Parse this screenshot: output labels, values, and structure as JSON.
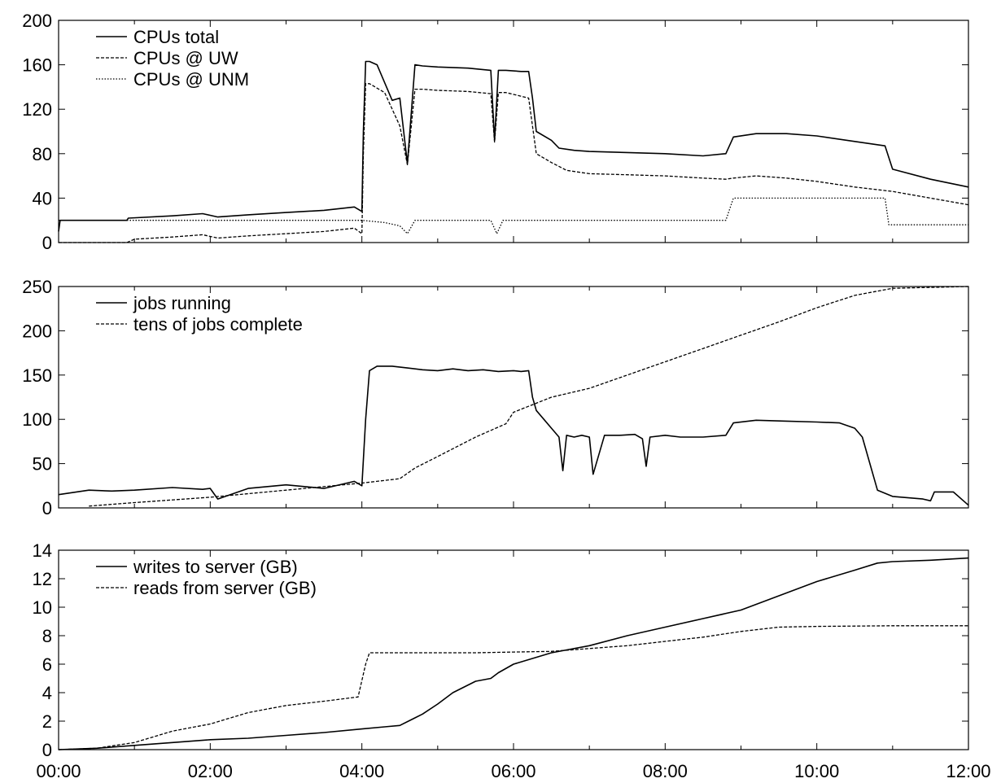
{
  "chart_data": [
    {
      "type": "line",
      "title": "",
      "xlabel": "",
      "ylabel": "",
      "xlim": [
        0,
        12
      ],
      "ylim": [
        0,
        200
      ],
      "yticks": [
        "0",
        "40",
        "80",
        "120",
        "160",
        "200"
      ],
      "ytick_values": [
        0,
        40,
        80,
        120,
        160,
        200
      ],
      "grid": false,
      "legend_position": "top-left",
      "series": [
        {
          "name": "CPUs total",
          "style": "solid",
          "x": [
            0.0,
            0.02,
            0.9,
            0.92,
            1.5,
            1.9,
            2.1,
            2.5,
            3.0,
            3.5,
            3.9,
            4.0,
            4.02,
            4.05,
            4.1,
            4.2,
            4.4,
            4.5,
            4.6,
            4.7,
            4.8,
            5.0,
            5.4,
            5.7,
            5.75,
            5.8,
            5.9,
            6.1,
            6.2,
            6.25,
            6.3,
            6.5,
            6.6,
            6.8,
            7.0,
            7.5,
            8.0,
            8.5,
            8.8,
            8.9,
            9.2,
            9.6,
            10.0,
            10.5,
            10.9,
            11.0,
            11.5,
            12.0
          ],
          "y": [
            10,
            20,
            20,
            22,
            24,
            26,
            23,
            25,
            27,
            29,
            32,
            28,
            100,
            163,
            163,
            160,
            128,
            130,
            71,
            160,
            159,
            158,
            157,
            155,
            92,
            155,
            155,
            154,
            154,
            130,
            100,
            92,
            85,
            83,
            82,
            81,
            80,
            78,
            80,
            95,
            98,
            98,
            96,
            91,
            87,
            66,
            57,
            50
          ]
        },
        {
          "name": "CPUs @ UW",
          "style": "dashed",
          "x": [
            0.0,
            0.9,
            1.0,
            1.5,
            1.9,
            2.1,
            2.5,
            3.0,
            3.5,
            3.9,
            4.0,
            4.02,
            4.05,
            4.1,
            4.3,
            4.5,
            4.6,
            4.7,
            4.8,
            5.0,
            5.4,
            5.7,
            5.75,
            5.8,
            5.9,
            6.2,
            6.25,
            6.3,
            6.5,
            6.7,
            7.0,
            7.5,
            8.0,
            8.5,
            8.8,
            8.9,
            9.2,
            9.6,
            10.0,
            10.5,
            11.0,
            11.5,
            12.0
          ],
          "y": [
            0,
            0,
            3,
            5,
            7,
            4,
            6,
            8,
            10,
            13,
            8,
            80,
            143,
            143,
            135,
            105,
            70,
            138,
            138,
            137,
            136,
            134,
            90,
            135,
            135,
            130,
            105,
            80,
            72,
            65,
            62,
            61,
            60,
            58,
            57,
            58,
            60,
            58,
            55,
            50,
            46,
            40,
            34
          ]
        },
        {
          "name": "CPUs @ UNM",
          "style": "dotted",
          "x": [
            0.0,
            4.0,
            4.3,
            4.5,
            4.6,
            4.7,
            4.8,
            5.7,
            5.78,
            5.86,
            8.8,
            8.9,
            10.9,
            10.95,
            12.0
          ],
          "y": [
            20,
            20,
            18,
            15,
            8,
            20,
            20,
            20,
            8,
            20,
            20,
            40,
            40,
            16,
            16
          ]
        }
      ]
    },
    {
      "type": "line",
      "title": "",
      "xlabel": "",
      "ylabel": "",
      "xlim": [
        0,
        12
      ],
      "ylim": [
        0,
        250
      ],
      "yticks": [
        "0",
        "50",
        "100",
        "150",
        "200",
        "250"
      ],
      "ytick_values": [
        0,
        50,
        100,
        150,
        200,
        250
      ],
      "grid": false,
      "legend_position": "top-left",
      "series": [
        {
          "name": "jobs running",
          "style": "solid",
          "x": [
            0.0,
            0.4,
            0.7,
            1.0,
            1.5,
            1.9,
            2.0,
            2.1,
            2.5,
            3.0,
            3.5,
            3.9,
            4.0,
            4.05,
            4.1,
            4.2,
            4.4,
            4.6,
            4.8,
            5.0,
            5.2,
            5.4,
            5.6,
            5.8,
            6.0,
            6.1,
            6.2,
            6.25,
            6.3,
            6.4,
            6.5,
            6.6,
            6.65,
            6.7,
            6.8,
            6.9,
            7.0,
            7.05,
            7.2,
            7.4,
            7.6,
            7.7,
            7.75,
            7.8,
            8.0,
            8.2,
            8.5,
            8.8,
            8.9,
            9.2,
            9.6,
            10.0,
            10.3,
            10.5,
            10.6,
            10.7,
            10.8,
            11.0,
            11.4,
            11.5,
            11.55,
            11.8,
            12.0
          ],
          "y": [
            15,
            20,
            19,
            20,
            23,
            21,
            22,
            10,
            22,
            26,
            22,
            30,
            25,
            100,
            155,
            160,
            160,
            158,
            156,
            155,
            157,
            155,
            156,
            154,
            155,
            154,
            155,
            125,
            110,
            100,
            90,
            80,
            42,
            82,
            80,
            82,
            80,
            38,
            82,
            82,
            83,
            78,
            47,
            80,
            82,
            80,
            80,
            82,
            96,
            99,
            98,
            97,
            96,
            90,
            80,
            50,
            20,
            13,
            10,
            8,
            18,
            18,
            3
          ]
        },
        {
          "name": "tens of jobs complete",
          "style": "dashed",
          "x": [
            0.0,
            0.4,
            1.0,
            2.0,
            3.0,
            4.0,
            4.5,
            4.7,
            5.0,
            5.5,
            5.9,
            6.0,
            6.5,
            7.0,
            7.5,
            8.0,
            8.5,
            9.0,
            9.5,
            10.0,
            10.5,
            11.0,
            11.5,
            12.0
          ],
          "y": [
            null,
            2,
            6,
            12,
            20,
            28,
            33,
            45,
            58,
            80,
            95,
            108,
            125,
            135,
            150,
            165,
            180,
            195,
            210,
            226,
            240,
            248,
            249,
            250
          ]
        }
      ]
    },
    {
      "type": "line",
      "title": "",
      "xlabel": "",
      "ylabel": "",
      "xlim": [
        0,
        12
      ],
      "ylim": [
        0,
        14
      ],
      "yticks": [
        "0",
        "2",
        "4",
        "6",
        "8",
        "10",
        "12",
        "14"
      ],
      "ytick_values": [
        0,
        2,
        4,
        6,
        8,
        10,
        12,
        14
      ],
      "xticks": [
        "00:00",
        "02:00",
        "04:00",
        "06:00",
        "08:00",
        "10:00",
        "12:00"
      ],
      "xtick_values": [
        0,
        2,
        4,
        6,
        8,
        10,
        12
      ],
      "grid": false,
      "legend_position": "top-left",
      "series": [
        {
          "name": "writes to server (GB)",
          "style": "solid",
          "x": [
            0.0,
            0.5,
            1.0,
            1.5,
            2.0,
            2.5,
            3.0,
            3.5,
            4.0,
            4.3,
            4.5,
            4.8,
            5.0,
            5.2,
            5.5,
            5.7,
            5.8,
            6.0,
            6.5,
            7.0,
            7.5,
            8.0,
            8.5,
            9.0,
            9.5,
            10.0,
            10.5,
            10.8,
            11.0,
            11.5,
            12.0
          ],
          "y": [
            0.0,
            0.1,
            0.3,
            0.5,
            0.7,
            0.8,
            1.0,
            1.2,
            1.45,
            1.6,
            1.7,
            2.5,
            3.2,
            4.0,
            4.8,
            5.0,
            5.4,
            6.0,
            6.8,
            7.3,
            8.0,
            8.6,
            9.2,
            9.8,
            10.8,
            11.8,
            12.6,
            13.1,
            13.2,
            13.3,
            13.45
          ]
        },
        {
          "name": "reads from server (GB)",
          "style": "dashed",
          "x": [
            0.0,
            0.5,
            1.0,
            1.5,
            2.0,
            2.5,
            3.0,
            3.5,
            3.95,
            4.05,
            4.1,
            4.15,
            5.0,
            5.5,
            6.0,
            6.5,
            7.0,
            7.5,
            8.0,
            8.5,
            9.0,
            9.5,
            10.0,
            11.0,
            12.0
          ],
          "y": [
            0.0,
            0.1,
            0.5,
            1.3,
            1.8,
            2.6,
            3.1,
            3.4,
            3.7,
            6.0,
            6.8,
            6.8,
            6.8,
            6.8,
            6.85,
            6.9,
            7.1,
            7.3,
            7.6,
            7.9,
            8.3,
            8.6,
            8.65,
            8.7,
            8.7
          ]
        }
      ]
    }
  ]
}
